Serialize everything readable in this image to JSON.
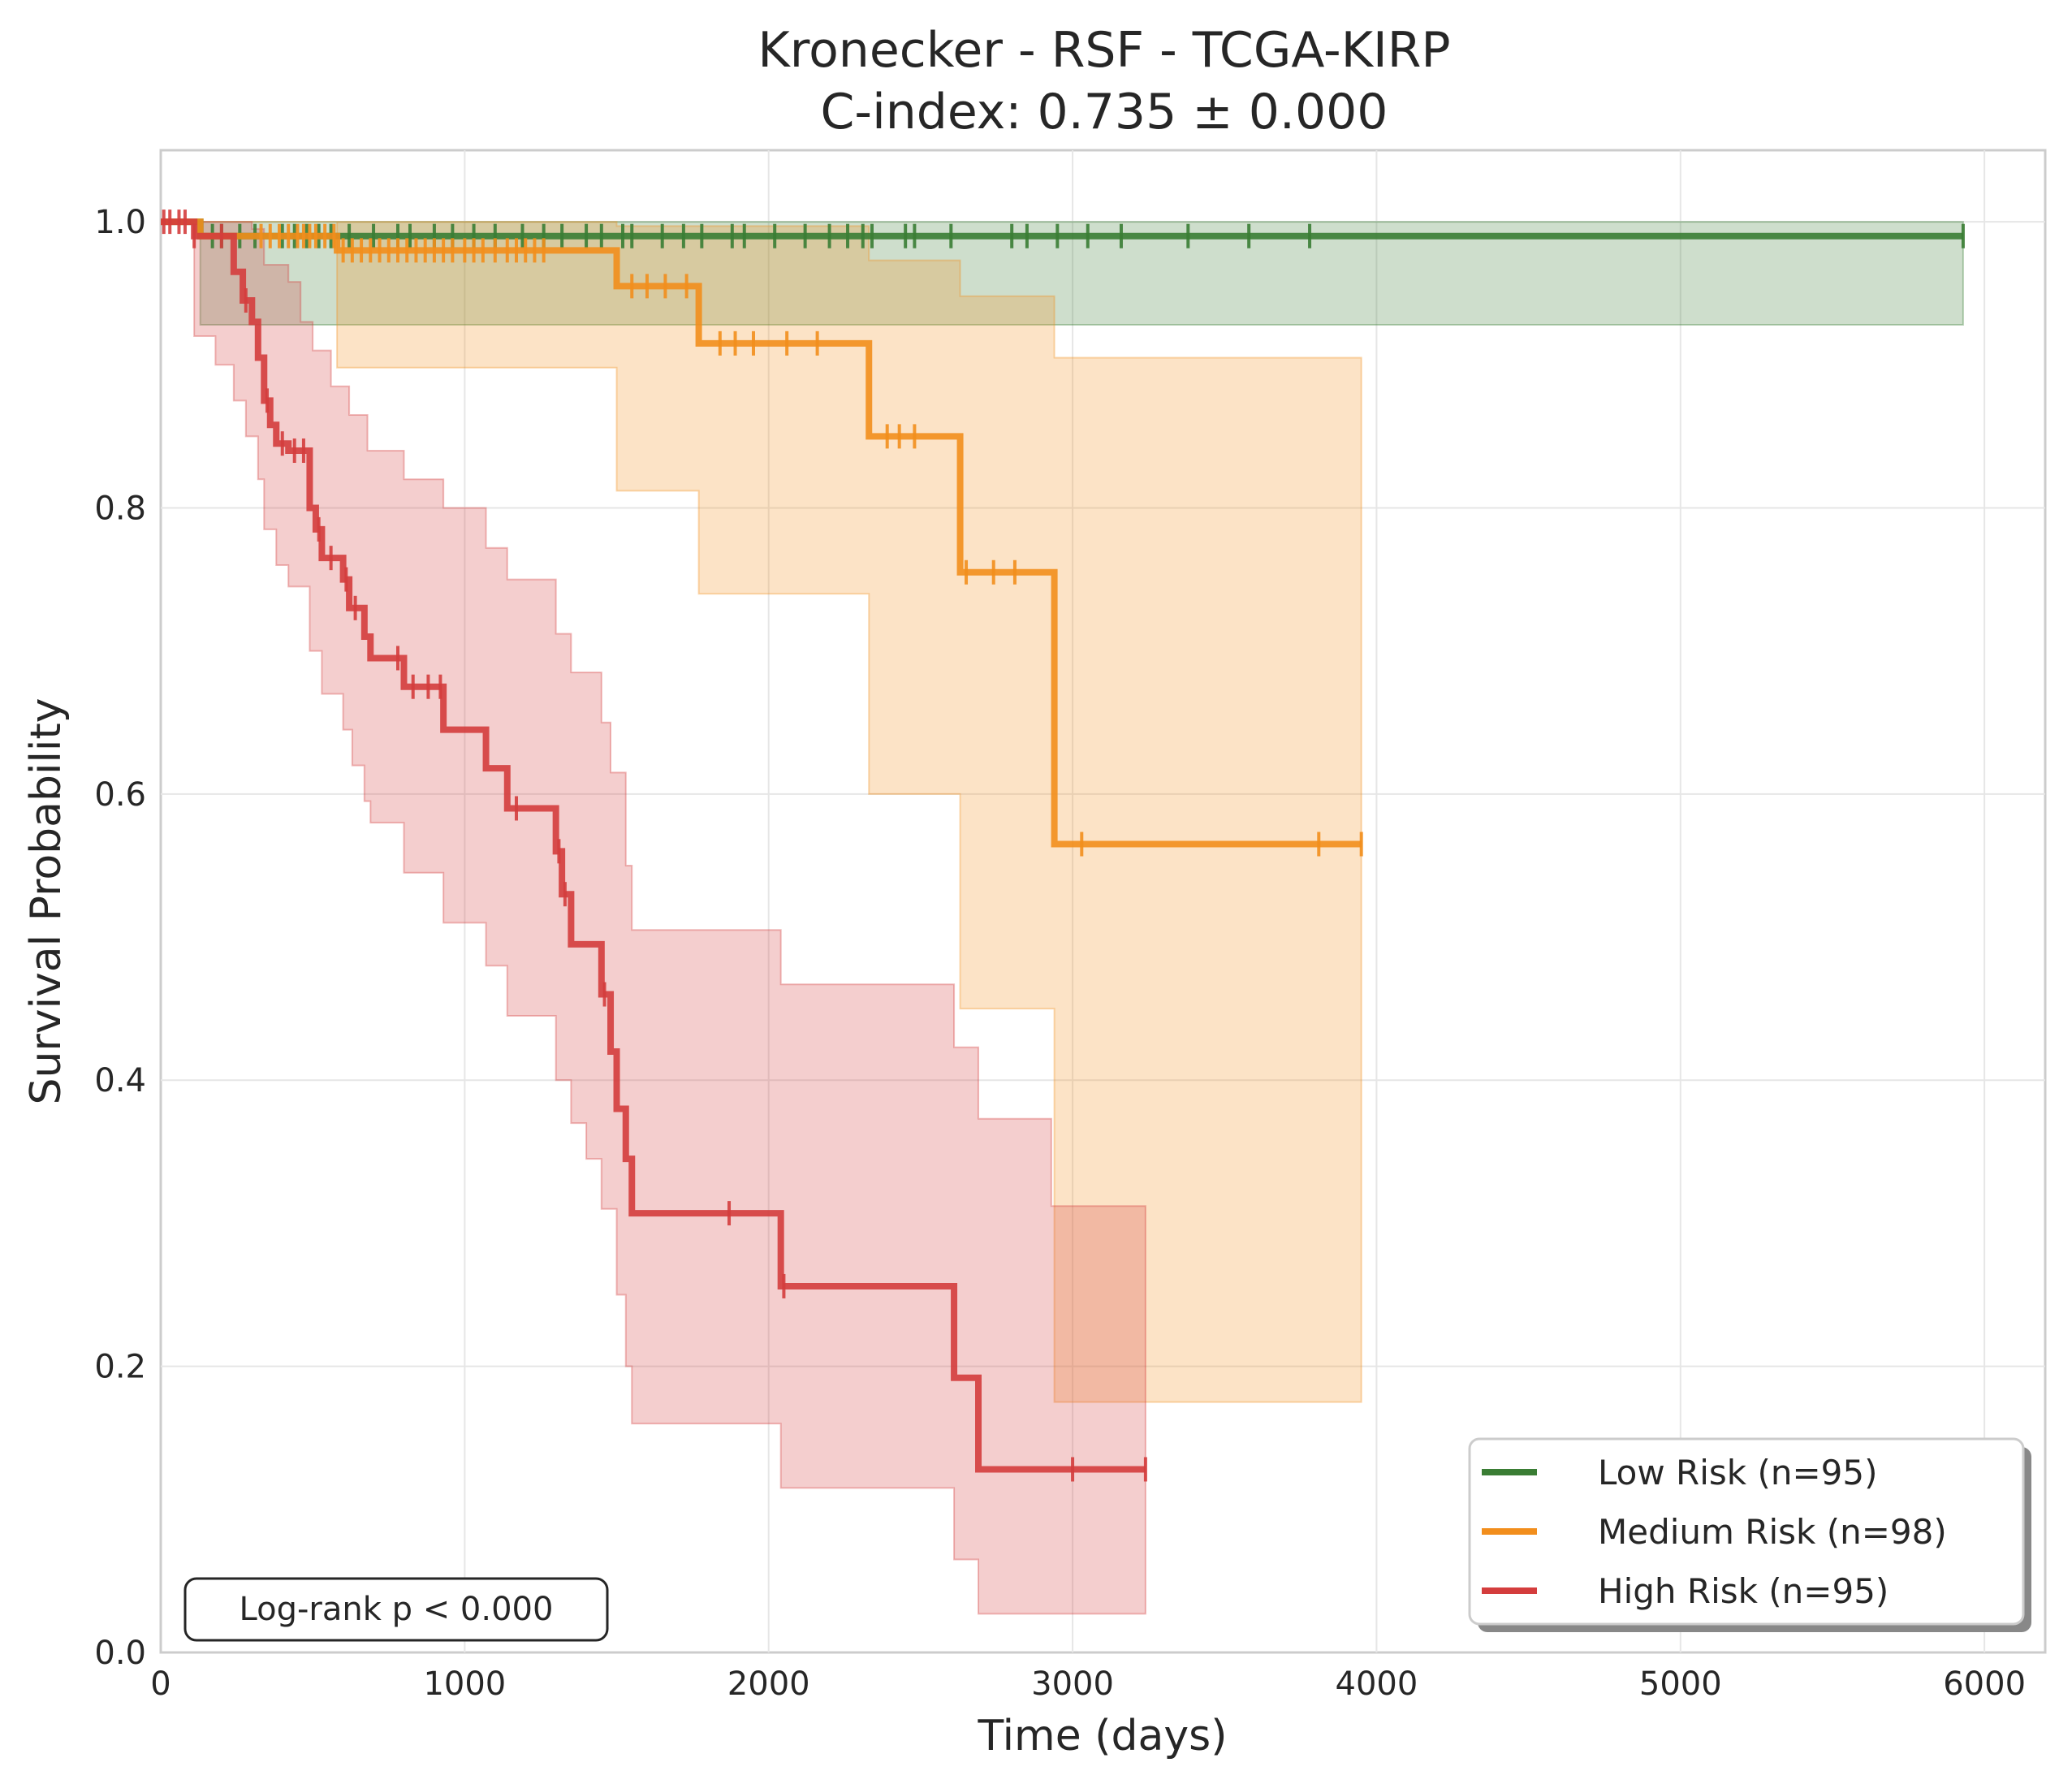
{
  "chart_data": {
    "type": "line",
    "title": "Kronecker - RSF - TCGA-KIRP",
    "subtitle": "C-index: 0.735 ± 0.000",
    "xlabel": "Time (days)",
    "ylabel": "Survival Probability",
    "xlim": [
      0,
      6200
    ],
    "ylim": [
      0,
      1.05
    ],
    "xticks": [
      0,
      1000,
      2000,
      3000,
      4000,
      5000,
      6000
    ],
    "xtick_labels": [
      "0",
      "1000",
      "2000",
      "3000",
      "4000",
      "5000",
      "6000"
    ],
    "yticks": [
      0.0,
      0.2,
      0.4,
      0.6,
      0.8,
      1.0
    ],
    "ytick_labels": [
      "0.0",
      "0.2",
      "0.4",
      "0.6",
      "0.8",
      "1.0"
    ],
    "grid": true,
    "legend_position": "lower-right",
    "annotation": "Log-rank p < 0.000",
    "series": [
      {
        "name": "Low Risk (n=95)",
        "color": "#3a7d34",
        "step": [
          [
            0,
            1.0
          ],
          [
            130,
            1.0
          ],
          [
            130,
            0.99
          ],
          [
            5930,
            0.99
          ]
        ],
        "ci_upper": [
          [
            0,
            1.0
          ],
          [
            5930,
            1.0
          ]
        ],
        "ci_lower": [
          [
            0,
            1.0
          ],
          [
            130,
            1.0
          ],
          [
            130,
            0.928
          ],
          [
            5930,
            0.928
          ]
        ],
        "censored": [
          170,
          200,
          260,
          310,
          400,
          440,
          480,
          520,
          560,
          620,
          700,
          780,
          820,
          900,
          960,
          1030,
          1100,
          1190,
          1260,
          1320,
          1400,
          1450,
          1520,
          1550,
          1650,
          1720,
          1780,
          1880,
          1920,
          2020,
          2120,
          2200,
          2260,
          2310,
          2340,
          2450,
          2480,
          2600,
          2800,
          2850,
          2950,
          3050,
          3160,
          3380,
          3580,
          3780,
          5930
        ]
      },
      {
        "name": "Medium Risk (n=98)",
        "color": "#f28e1c",
        "step": [
          [
            0,
            1.0
          ],
          [
            130,
            1.0
          ],
          [
            130,
            0.99
          ],
          [
            580,
            0.99
          ],
          [
            580,
            0.98
          ],
          [
            1500,
            0.98
          ],
          [
            1500,
            0.955
          ],
          [
            1770,
            0.955
          ],
          [
            1770,
            0.915
          ],
          [
            2330,
            0.915
          ],
          [
            2330,
            0.85
          ],
          [
            2630,
            0.85
          ],
          [
            2630,
            0.755
          ],
          [
            2940,
            0.755
          ],
          [
            2940,
            0.565
          ],
          [
            3950,
            0.565
          ]
        ],
        "ci_upper": [
          [
            0,
            1.0
          ],
          [
            1500,
            1.0
          ],
          [
            1500,
            0.997
          ],
          [
            2330,
            0.997
          ],
          [
            2330,
            0.973
          ],
          [
            2630,
            0.973
          ],
          [
            2630,
            0.948
          ],
          [
            2940,
            0.948
          ],
          [
            2940,
            0.905
          ],
          [
            3950,
            0.905
          ]
        ],
        "ci_lower": [
          [
            0,
            1.0
          ],
          [
            580,
            1.0
          ],
          [
            580,
            0.898
          ],
          [
            1500,
            0.898
          ],
          [
            1500,
            0.812
          ],
          [
            1770,
            0.812
          ],
          [
            1770,
            0.74
          ],
          [
            2330,
            0.74
          ],
          [
            2330,
            0.6
          ],
          [
            2630,
            0.6
          ],
          [
            2630,
            0.45
          ],
          [
            2940,
            0.45
          ],
          [
            2940,
            0.175
          ],
          [
            3950,
            0.175
          ]
        ],
        "censored": [
          330,
          360,
          390,
          420,
          450,
          470,
          490,
          510,
          540,
          570,
          600,
          630,
          660,
          690,
          720,
          750,
          780,
          810,
          840,
          870,
          900,
          930,
          960,
          1000,
          1030,
          1060,
          1100,
          1140,
          1170,
          1200,
          1230,
          1260,
          1550,
          1600,
          1660,
          1730,
          1840,
          1890,
          1950,
          2060,
          2160,
          2390,
          2430,
          2480,
          2650,
          2740,
          2810,
          3030,
          3810,
          3950
        ]
      },
      {
        "name": "High Risk (n=95)",
        "color": "#d43d3d",
        "step": [
          [
            0,
            1.0
          ],
          [
            110,
            1.0
          ],
          [
            110,
            0.99
          ],
          [
            240,
            0.99
          ],
          [
            240,
            0.965
          ],
          [
            270,
            0.965
          ],
          [
            270,
            0.945
          ],
          [
            300,
            0.945
          ],
          [
            300,
            0.93
          ],
          [
            320,
            0.93
          ],
          [
            320,
            0.905
          ],
          [
            340,
            0.905
          ],
          [
            340,
            0.875
          ],
          [
            360,
            0.875
          ],
          [
            360,
            0.858
          ],
          [
            380,
            0.858
          ],
          [
            380,
            0.845
          ],
          [
            420,
            0.845
          ],
          [
            420,
            0.84
          ],
          [
            490,
            0.84
          ],
          [
            490,
            0.8
          ],
          [
            510,
            0.8
          ],
          [
            510,
            0.785
          ],
          [
            530,
            0.785
          ],
          [
            530,
            0.765
          ],
          [
            600,
            0.765
          ],
          [
            600,
            0.75
          ],
          [
            620,
            0.75
          ],
          [
            620,
            0.73
          ],
          [
            670,
            0.73
          ],
          [
            670,
            0.71
          ],
          [
            690,
            0.71
          ],
          [
            690,
            0.695
          ],
          [
            800,
            0.695
          ],
          [
            800,
            0.675
          ],
          [
            930,
            0.675
          ],
          [
            930,
            0.645
          ],
          [
            1070,
            0.645
          ],
          [
            1070,
            0.618
          ],
          [
            1140,
            0.618
          ],
          [
            1140,
            0.59
          ],
          [
            1300,
            0.59
          ],
          [
            1300,
            0.56
          ],
          [
            1320,
            0.56
          ],
          [
            1320,
            0.53
          ],
          [
            1350,
            0.53
          ],
          [
            1350,
            0.495
          ],
          [
            1450,
            0.495
          ],
          [
            1450,
            0.46
          ],
          [
            1480,
            0.46
          ],
          [
            1480,
            0.42
          ],
          [
            1500,
            0.42
          ],
          [
            1500,
            0.38
          ],
          [
            1530,
            0.38
          ],
          [
            1530,
            0.345
          ],
          [
            1550,
            0.345
          ],
          [
            1550,
            0.307
          ],
          [
            2040,
            0.307
          ],
          [
            2040,
            0.256
          ],
          [
            2610,
            0.256
          ],
          [
            2610,
            0.192
          ],
          [
            2690,
            0.192
          ],
          [
            2690,
            0.128
          ],
          [
            3240,
            0.128
          ]
        ],
        "ci_upper": [
          [
            0,
            1.0
          ],
          [
            300,
            1.0
          ],
          [
            300,
            0.995
          ],
          [
            340,
            0.995
          ],
          [
            340,
            0.97
          ],
          [
            420,
            0.97
          ],
          [
            420,
            0.958
          ],
          [
            460,
            0.958
          ],
          [
            460,
            0.93
          ],
          [
            500,
            0.93
          ],
          [
            500,
            0.91
          ],
          [
            560,
            0.91
          ],
          [
            560,
            0.885
          ],
          [
            620,
            0.885
          ],
          [
            620,
            0.865
          ],
          [
            680,
            0.865
          ],
          [
            680,
            0.84
          ],
          [
            800,
            0.84
          ],
          [
            800,
            0.82
          ],
          [
            930,
            0.82
          ],
          [
            930,
            0.8
          ],
          [
            1070,
            0.8
          ],
          [
            1070,
            0.772
          ],
          [
            1140,
            0.772
          ],
          [
            1140,
            0.75
          ],
          [
            1300,
            0.75
          ],
          [
            1300,
            0.712
          ],
          [
            1350,
            0.712
          ],
          [
            1350,
            0.685
          ],
          [
            1450,
            0.685
          ],
          [
            1450,
            0.65
          ],
          [
            1480,
            0.65
          ],
          [
            1480,
            0.615
          ],
          [
            1530,
            0.615
          ],
          [
            1530,
            0.55
          ],
          [
            1550,
            0.55
          ],
          [
            1550,
            0.505
          ],
          [
            2040,
            0.505
          ],
          [
            2040,
            0.467
          ],
          [
            2610,
            0.467
          ],
          [
            2610,
            0.423
          ],
          [
            2690,
            0.423
          ],
          [
            2690,
            0.373
          ],
          [
            2930,
            0.373
          ],
          [
            2930,
            0.312
          ],
          [
            3240,
            0.312
          ]
        ],
        "ci_lower": [
          [
            0,
            1.0
          ],
          [
            110,
            1.0
          ],
          [
            110,
            0.92
          ],
          [
            180,
            0.92
          ],
          [
            180,
            0.9
          ],
          [
            240,
            0.9
          ],
          [
            240,
            0.875
          ],
          [
            280,
            0.875
          ],
          [
            280,
            0.85
          ],
          [
            320,
            0.85
          ],
          [
            320,
            0.82
          ],
          [
            340,
            0.82
          ],
          [
            340,
            0.785
          ],
          [
            380,
            0.785
          ],
          [
            380,
            0.76
          ],
          [
            420,
            0.76
          ],
          [
            420,
            0.745
          ],
          [
            490,
            0.745
          ],
          [
            490,
            0.7
          ],
          [
            530,
            0.7
          ],
          [
            530,
            0.67
          ],
          [
            600,
            0.67
          ],
          [
            600,
            0.645
          ],
          [
            630,
            0.645
          ],
          [
            630,
            0.62
          ],
          [
            670,
            0.62
          ],
          [
            670,
            0.595
          ],
          [
            690,
            0.595
          ],
          [
            690,
            0.58
          ],
          [
            800,
            0.58
          ],
          [
            800,
            0.545
          ],
          [
            930,
            0.545
          ],
          [
            930,
            0.51
          ],
          [
            1070,
            0.51
          ],
          [
            1070,
            0.48
          ],
          [
            1140,
            0.48
          ],
          [
            1140,
            0.445
          ],
          [
            1300,
            0.445
          ],
          [
            1300,
            0.4
          ],
          [
            1350,
            0.4
          ],
          [
            1350,
            0.37
          ],
          [
            1400,
            0.37
          ],
          [
            1400,
            0.345
          ],
          [
            1450,
            0.345
          ],
          [
            1450,
            0.31
          ],
          [
            1500,
            0.31
          ],
          [
            1500,
            0.25
          ],
          [
            1530,
            0.25
          ],
          [
            1530,
            0.2
          ],
          [
            1550,
            0.2
          ],
          [
            1550,
            0.16
          ],
          [
            2040,
            0.16
          ],
          [
            2040,
            0.115
          ],
          [
            2610,
            0.115
          ],
          [
            2610,
            0.065
          ],
          [
            2690,
            0.065
          ],
          [
            2690,
            0.027
          ],
          [
            3240,
            0.027
          ]
        ],
        "censored": [
          10,
          30,
          60,
          80,
          110,
          200,
          280,
          350,
          400,
          440,
          470,
          520,
          560,
          610,
          640,
          780,
          830,
          880,
          920,
          1170,
          1310,
          1330,
          1460,
          1870,
          2050,
          3000,
          3240
        ]
      }
    ]
  }
}
